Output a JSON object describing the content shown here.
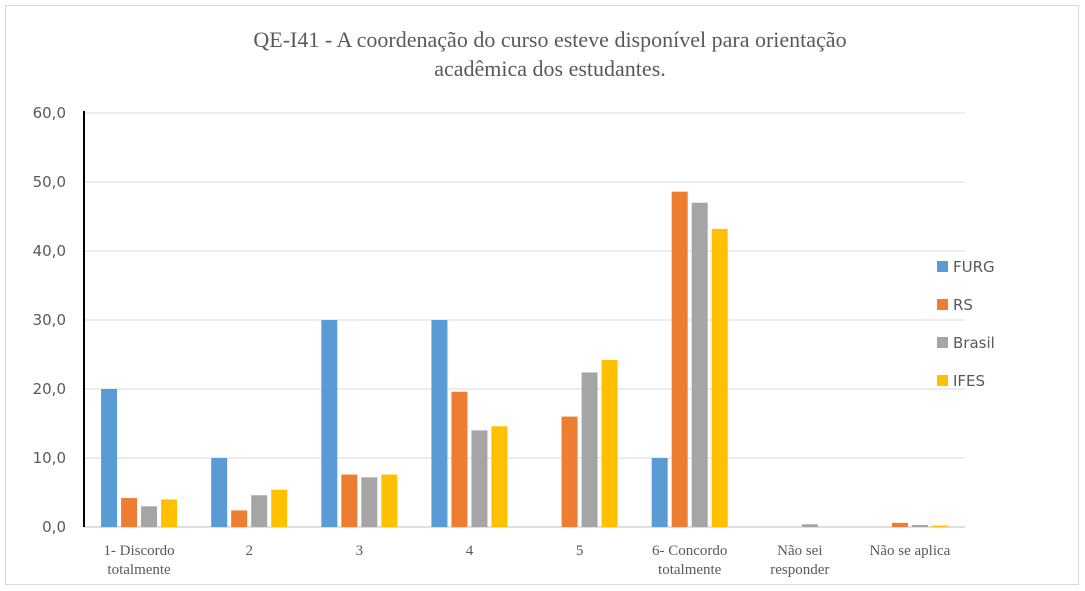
{
  "chart_data": {
    "type": "bar",
    "title_lines": [
      "QE-I41 - A coordenação do curso esteve disponível para orientação",
      "acadêmica dos estudantes."
    ],
    "categories": [
      [
        "1- Discordo",
        "totalmente"
      ],
      [
        "2"
      ],
      [
        "3"
      ],
      [
        "4"
      ],
      [
        "5"
      ],
      [
        "6- Concordo",
        "totalmente"
      ],
      [
        "Não sei",
        "responder"
      ],
      [
        "Não se aplica"
      ]
    ],
    "series": [
      {
        "name": "FURG",
        "color": "#5B9BD5",
        "values": [
          20.0,
          10.0,
          30.0,
          30.0,
          0.0,
          10.0,
          0.0,
          0.0
        ]
      },
      {
        "name": "RS",
        "color": "#ED7D31",
        "values": [
          4.2,
          2.4,
          7.6,
          19.6,
          16.0,
          48.6,
          0.0,
          0.6
        ]
      },
      {
        "name": "Brasil",
        "color": "#A5A5A5",
        "values": [
          3.0,
          4.6,
          7.2,
          14.0,
          22.4,
          47.0,
          0.4,
          0.3
        ]
      },
      {
        "name": "IFES",
        "color": "#FFC000",
        "values": [
          4.0,
          5.4,
          7.6,
          14.6,
          24.2,
          43.2,
          0.0,
          0.2
        ]
      }
    ],
    "ylim": [
      0,
      60
    ],
    "yticks": [
      "0,0",
      "10,0",
      "20,0",
      "30,0",
      "40,0",
      "50,0",
      "60,0"
    ],
    "grid": true,
    "legend_position": "right"
  }
}
